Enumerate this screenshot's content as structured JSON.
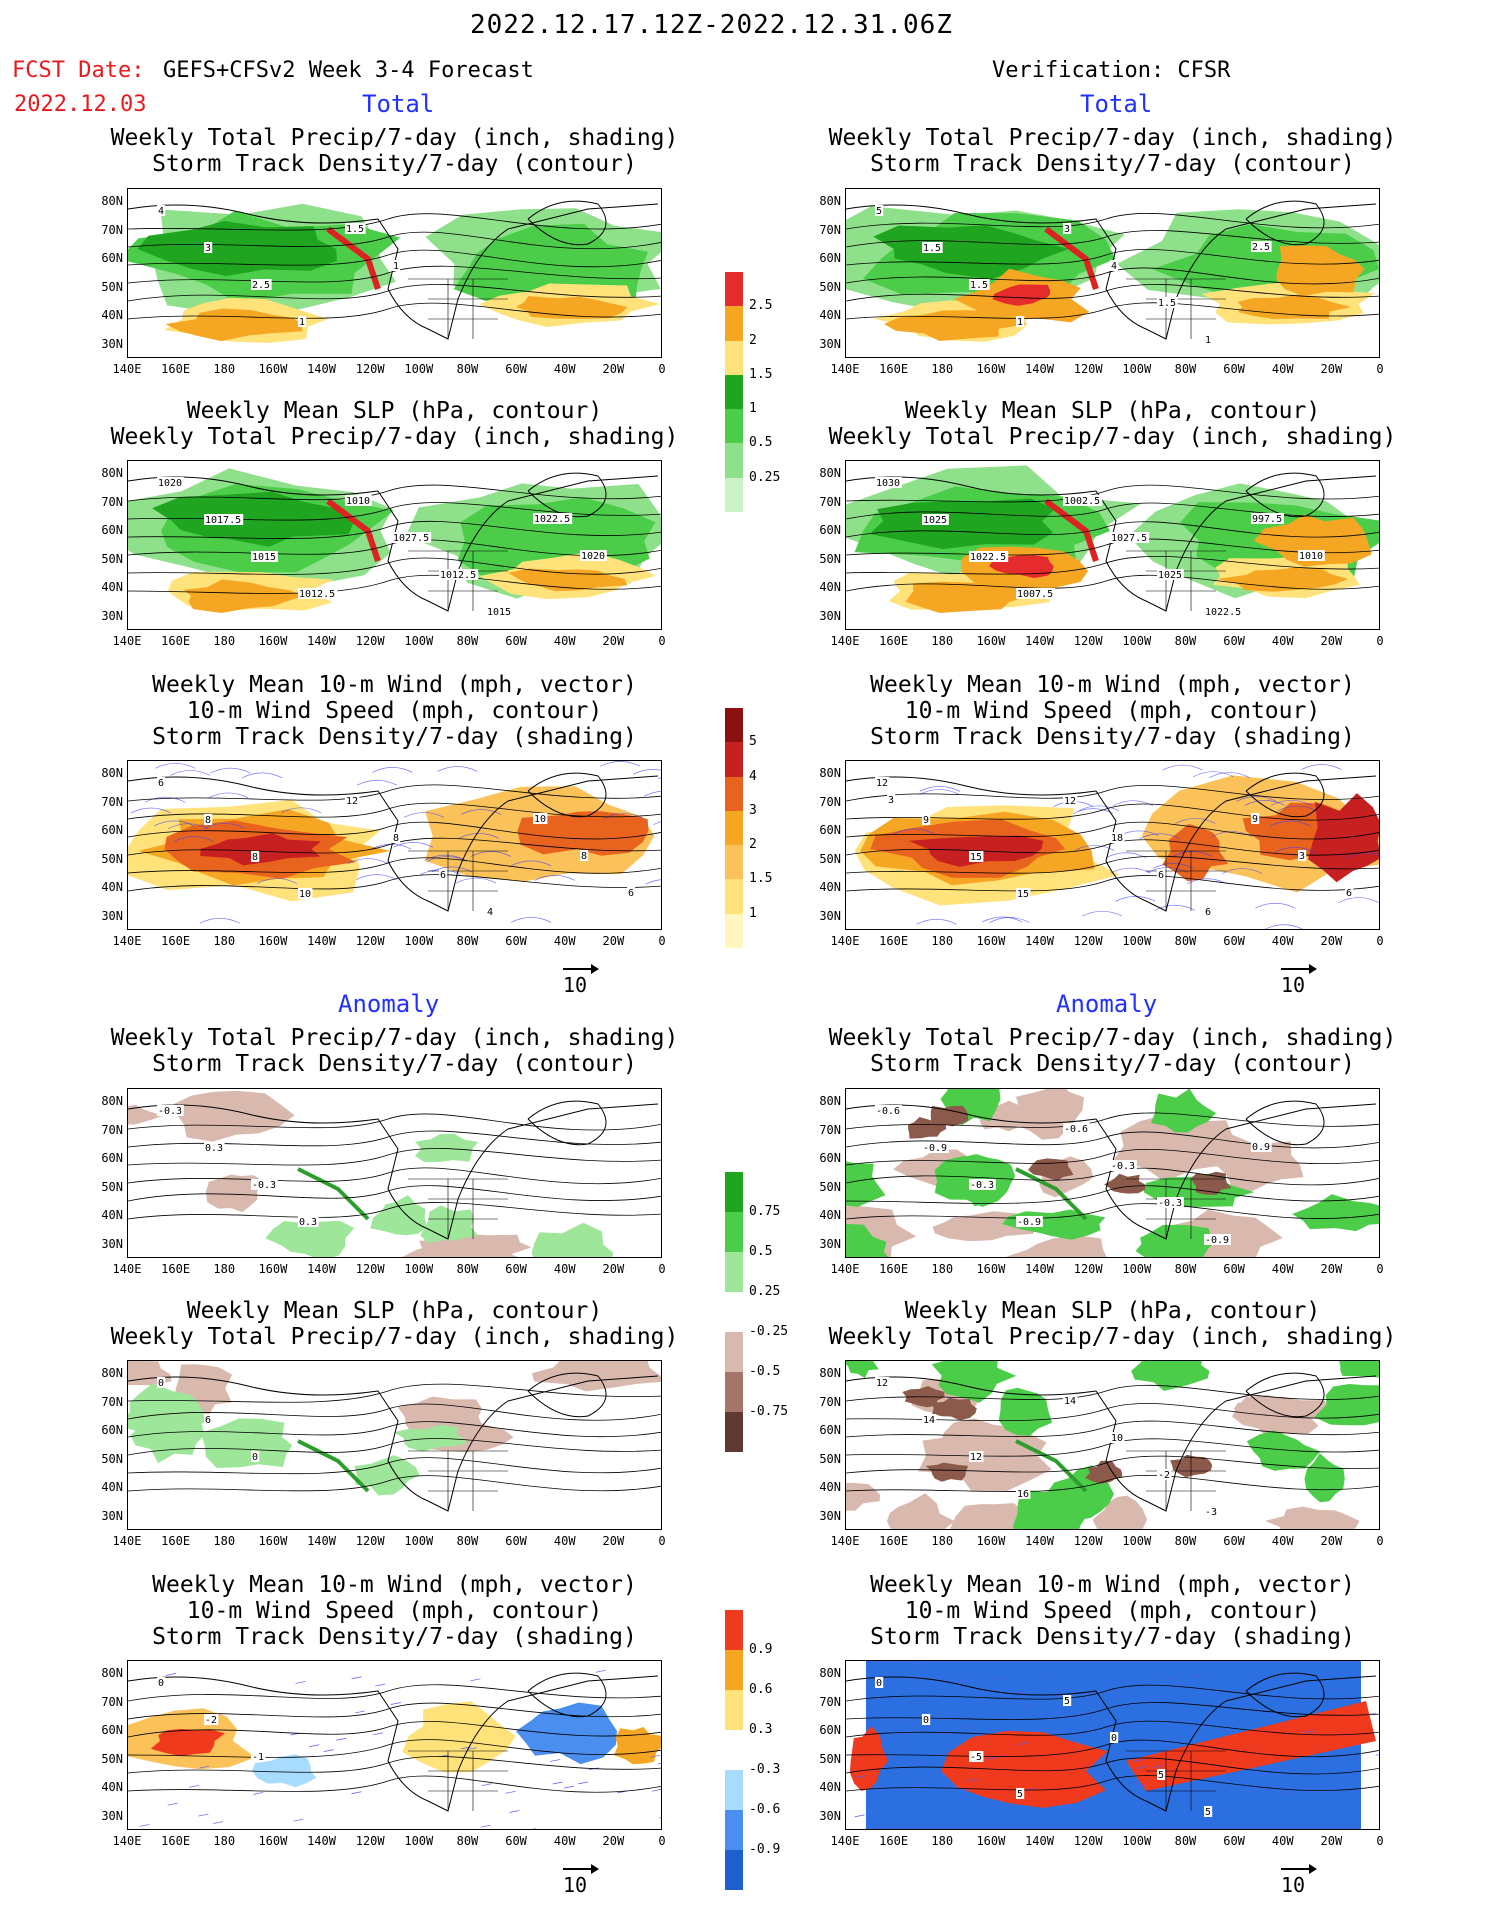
{
  "header": {
    "date_range": "2022.12.17.12Z-2022.12.31.06Z",
    "fcst_date_label": "FCST Date:",
    "fcst_product": "GEFS+CFSv2 Week 3-4 Forecast",
    "fcst_date": "2022.12.03",
    "verification": "Verification: CFSR"
  },
  "sections": {
    "total": "Total",
    "anomaly": "Anomaly"
  },
  "titles": {
    "precip_line1": "Weekly Total Precip/7-day (inch, shading)",
    "storm_contour": "Storm Track Density/7-day (contour)",
    "slp_line1": "Weekly Mean SLP (hPa, contour)",
    "precip_shading": "Weekly Total Precip/7-day (inch, shading)",
    "wind_line1": "Weekly Mean 10-m Wind (mph, vector)",
    "wind_line2": "10-m Wind Speed (mph, contour)",
    "storm_shading": "Storm Track Density/7-day (shading)"
  },
  "axes": {
    "lat_labels": [
      "80N",
      "70N",
      "60N",
      "50N",
      "40N",
      "30N"
    ],
    "lon_labels": [
      "140E",
      "160E",
      "180",
      "160W",
      "140W",
      "120W",
      "100W",
      "80W",
      "60W",
      "40W",
      "20W",
      "0"
    ]
  },
  "vector_ref": "10",
  "colorbars": {
    "total_precip": [
      "2.5",
      "2",
      "1.5",
      "1",
      "0.5",
      "0.25"
    ],
    "total_storm": [
      "5",
      "4",
      "3",
      "2",
      "1.5",
      "1"
    ],
    "anom_precip": [
      "0.75",
      "0.5",
      "0.25",
      "-0.25",
      "-0.5",
      "-0.75"
    ],
    "anom_storm": [
      "0.9",
      "0.6",
      "0.3",
      "-0.3",
      "-0.6",
      "-0.9"
    ]
  },
  "contour_labels": {
    "p1_left": [
      "4",
      "3",
      "2.5",
      "1",
      "1.5",
      "1"
    ],
    "p1_right": [
      "5",
      "1.5",
      "1.5",
      "1",
      "3",
      "4",
      "1.5",
      "1",
      "2.5"
    ],
    "p2_left": [
      "1020",
      "1017.5",
      "1015",
      "1012.5",
      "1010",
      "1027.5",
      "1012.5",
      "1015",
      "1022.5",
      "1020"
    ],
    "p2_right": [
      "1030",
      "1025",
      "1022.5",
      "1007.5",
      "1002.5",
      "1027.5",
      "1025",
      "1022.5",
      "997.5",
      "1010"
    ],
    "p3_left": [
      "6",
      "8",
      "8",
      "10",
      "12",
      "8",
      "6",
      "4",
      "10",
      "8",
      "6"
    ],
    "p3_right": [
      "12",
      "9",
      "15",
      "15",
      "12",
      "18",
      "6",
      "6",
      "9",
      "3",
      "6",
      "3"
    ],
    "p4_left": [
      "-0.3",
      "0.3",
      "-0.3",
      "0.3"
    ],
    "p4_right": [
      "-0.6",
      "-0.9",
      "-0.3",
      "-0.9",
      "-0.6",
      "-0.3",
      "-0.3",
      "-0.9",
      "0.9"
    ],
    "p5_left": [
      "0",
      "6",
      "0"
    ],
    "p5_right": [
      "12",
      "14",
      "12",
      "16",
      "14",
      "10",
      "-2",
      "-3"
    ],
    "p6_left": [
      "0",
      "-2",
      "-1"
    ],
    "p6_right": [
      "0",
      "0",
      "-5",
      "5",
      "5",
      "0",
      "5",
      "5"
    ]
  }
}
